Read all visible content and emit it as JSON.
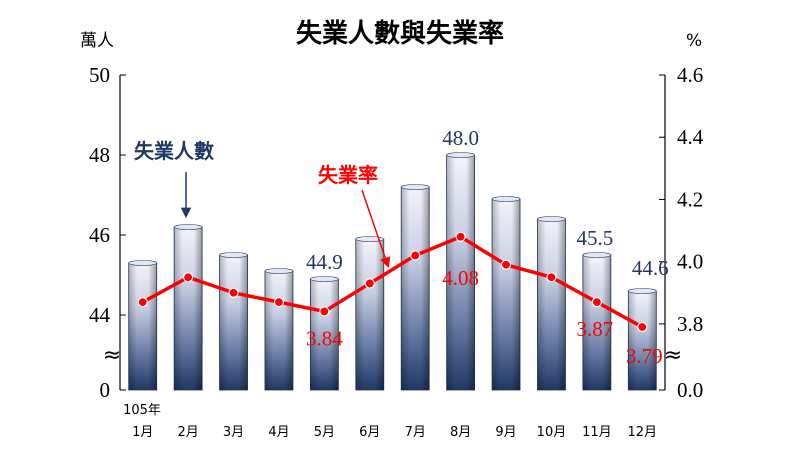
{
  "chart_data": {
    "type": "bar+line",
    "title": "失業人數與失業率",
    "left_unit": "萬人",
    "right_unit": "%",
    "year_label": "105年",
    "categories": [
      "1月",
      "2月",
      "3月",
      "4月",
      "5月",
      "6月",
      "7月",
      "8月",
      "9月",
      "10月",
      "11月",
      "12月"
    ],
    "series": [
      {
        "name": "失業人數",
        "kind": "bar",
        "axis": "left",
        "values": [
          45.3,
          46.2,
          45.5,
          45.1,
          44.9,
          45.9,
          47.2,
          48.0,
          46.9,
          46.4,
          45.5,
          44.6
        ],
        "labels": [
          "",
          "",
          "",
          "",
          "44.9",
          "",
          "",
          "48.0",
          "",
          "",
          "45.5",
          "44.6"
        ]
      },
      {
        "name": "失業率",
        "kind": "line",
        "axis": "right",
        "values": [
          3.87,
          3.95,
          3.9,
          3.87,
          3.84,
          3.93,
          4.02,
          4.08,
          3.99,
          3.95,
          3.87,
          3.79
        ],
        "labels": [
          "",
          "",
          "",
          "",
          "3.84",
          "",
          "",
          "4.08",
          "",
          "",
          "3.87",
          "3.79"
        ]
      }
    ],
    "left_axis": {
      "ticks": [
        "0",
        "44",
        "46",
        "48",
        "50"
      ],
      "range": [
        43,
        50
      ],
      "break": true
    },
    "right_axis": {
      "ticks": [
        "0.0",
        "3.8",
        "4.0",
        "4.2",
        "4.4",
        "4.6"
      ],
      "range": [
        3.7,
        4.6
      ],
      "break": true
    },
    "colors": {
      "bar_dark": "#1f3864",
      "bar_light": "#f2f4fa",
      "line": "#ff0000",
      "bar_label": "#1f3864"
    },
    "break_symbol": "≈"
  }
}
